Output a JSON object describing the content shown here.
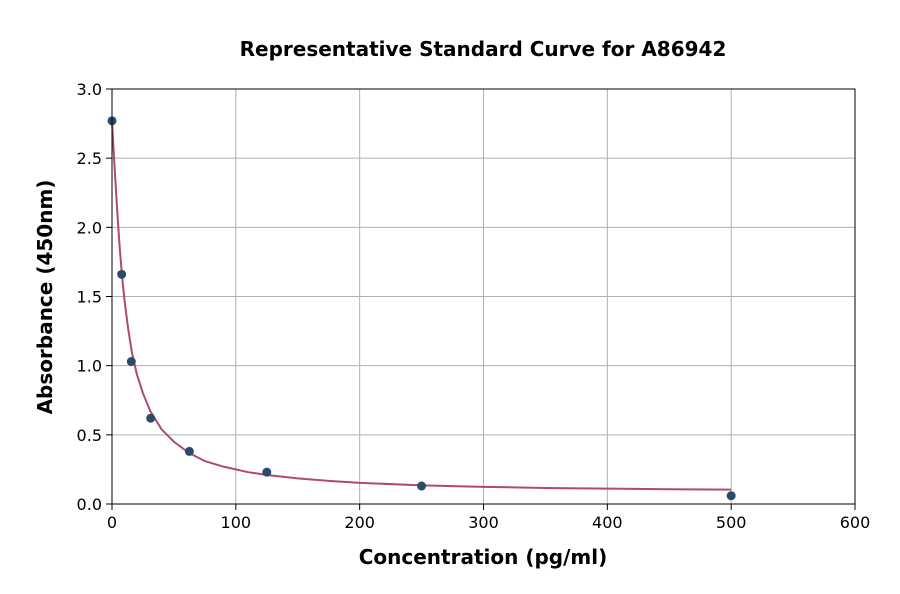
{
  "chart_data": {
    "type": "scatter",
    "title": "Representative Standard Curve for A86942",
    "xlabel": "Concentration (pg/ml)",
    "ylabel": "Absorbance (450nm)",
    "xlim": [
      0,
      600
    ],
    "ylim": [
      0,
      3.0
    ],
    "xticks": [
      0,
      100,
      200,
      300,
      400,
      500,
      600
    ],
    "yticks": [
      0.0,
      0.5,
      1.0,
      1.5,
      2.0,
      2.5,
      3.0
    ],
    "xtick_labels": [
      "0",
      "100",
      "200",
      "300",
      "400",
      "500",
      "600"
    ],
    "ytick_labels": [
      "0.0",
      "0.5",
      "1.0",
      "1.5",
      "2.0",
      "2.5",
      "3.0"
    ],
    "grid": true,
    "series": [
      {
        "kind": "points",
        "x": [
          0,
          7.8,
          15.6,
          31.25,
          62.5,
          125,
          250,
          500
        ],
        "y": [
          2.77,
          1.66,
          1.03,
          0.62,
          0.38,
          0.23,
          0.13,
          0.06
        ]
      },
      {
        "kind": "fit_curve",
        "x": [
          0,
          2,
          4,
          6,
          8,
          10,
          13,
          16,
          20,
          25,
          31,
          40,
          50,
          62,
          75,
          90,
          110,
          125,
          150,
          175,
          200,
          250,
          300,
          350,
          400,
          450,
          500
        ],
        "y": [
          2.77,
          2.45,
          2.15,
          1.88,
          1.66,
          1.48,
          1.27,
          1.1,
          0.94,
          0.8,
          0.67,
          0.54,
          0.45,
          0.37,
          0.31,
          0.27,
          0.23,
          0.21,
          0.185,
          0.167,
          0.153,
          0.135,
          0.124,
          0.116,
          0.111,
          0.107,
          0.104
        ]
      }
    ],
    "colors": {
      "points": "#2e4a6b",
      "curve": "#b04a72",
      "grid": "#b0b0b0",
      "axes": "#000000"
    }
  }
}
